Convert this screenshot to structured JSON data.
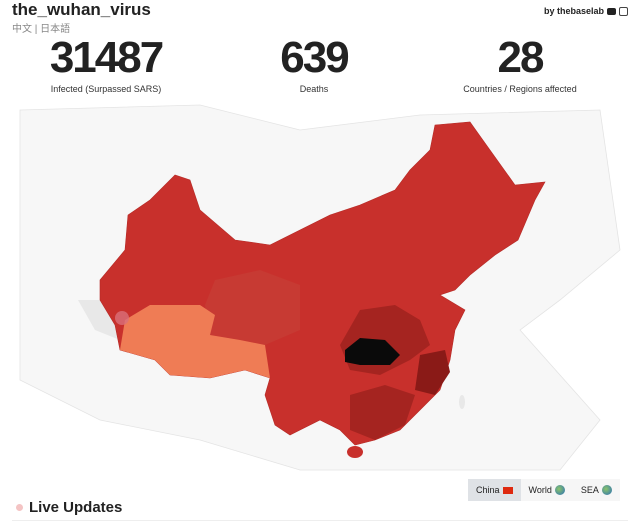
{
  "header": {
    "title": "the_wuhan_virus",
    "languages": "中文 | 日本語",
    "credit": "by thebaselab",
    "social_icons": [
      "youtube-icon",
      "instagram-icon"
    ]
  },
  "stats": [
    {
      "value": "31487",
      "label": "Infected (Surpassed SARS)"
    },
    {
      "value": "639",
      "label": "Deaths"
    },
    {
      "value": "28",
      "label": "Countries / Regions affected"
    }
  ],
  "map": {
    "colors": {
      "base": "#c8302c",
      "dark": "#a52420",
      "darker": "#8a1a17",
      "epicenter": "#0a0a0a",
      "low": "#ef7c55",
      "neighbor": "#f0f0f0"
    }
  },
  "view_tabs": [
    {
      "label": "China",
      "icon": "china-flag-icon",
      "active": true
    },
    {
      "label": "World",
      "icon": "globe-icon",
      "active": false
    },
    {
      "label": "SEA",
      "icon": "globe-icon",
      "active": false
    }
  ],
  "live_updates": {
    "heading": "Live Updates"
  }
}
